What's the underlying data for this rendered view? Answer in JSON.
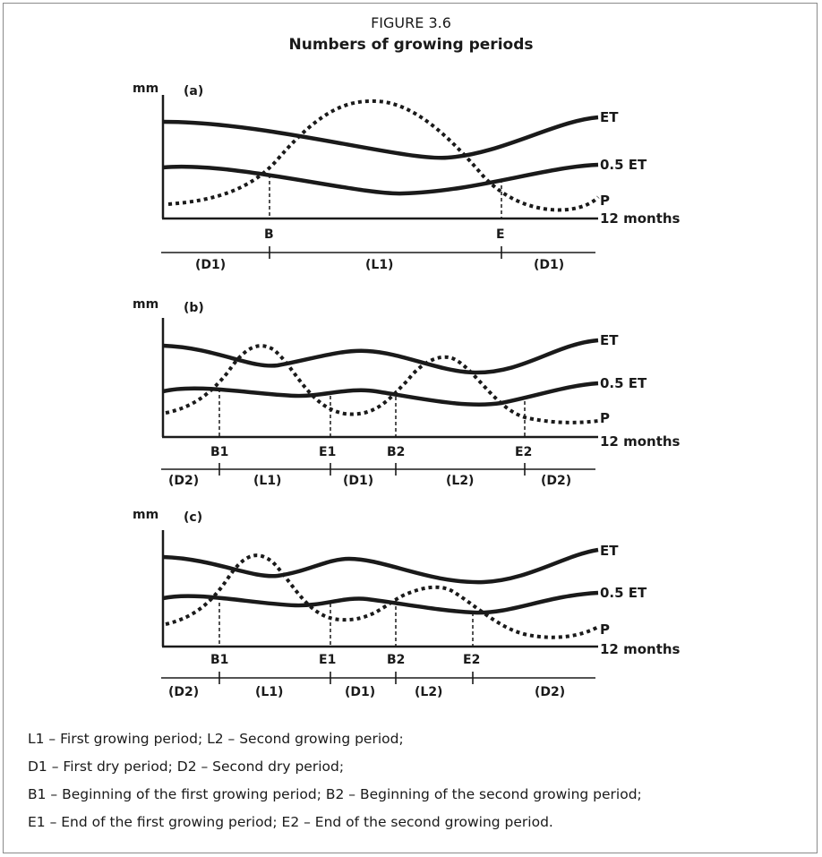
{
  "figure": {
    "number": "FIGURE 3.6",
    "title": "Numbers of growing periods"
  },
  "panels": [
    {
      "id": "a",
      "label": "(a)",
      "y_unit": "mm",
      "curve_labels": {
        "et": "ET",
        "half_et": "0.5 ET",
        "p": "P",
        "axis": "12 months"
      },
      "markers": [
        "B",
        "E"
      ],
      "periods": [
        "(D1)",
        "(L1)",
        "(D1)"
      ]
    },
    {
      "id": "b",
      "label": "(b)",
      "y_unit": "mm",
      "curve_labels": {
        "et": "ET",
        "half_et": "0.5 ET",
        "p": "P",
        "axis": "12 months"
      },
      "markers": [
        "B1",
        "E1",
        "B2",
        "E2"
      ],
      "periods": [
        "(D2)",
        "(L1)",
        "(D1)",
        "(L2)",
        "(D2)"
      ]
    },
    {
      "id": "c",
      "label": "(c)",
      "y_unit": "mm",
      "curve_labels": {
        "et": "ET",
        "half_et": "0.5 ET",
        "p": "P",
        "axis": "12 months"
      },
      "markers": [
        "B1",
        "E1",
        "B2",
        "E2"
      ],
      "periods": [
        "(D2)",
        "(L1)",
        "(D1)",
        "(L2)",
        "(D2)"
      ]
    }
  ],
  "legend": [
    "L1 – First growing period; L2 – Second growing period;",
    "D1 – First dry period; D2 – Second dry period;",
    "B1 – Beginning of the first growing period; B2 – Beginning of the second growing period;",
    "E1 – End of the first growing period; E2 – End of the second growing period."
  ]
}
